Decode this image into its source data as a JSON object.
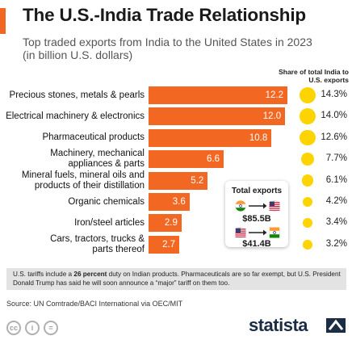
{
  "title": "The U.S.-India Trade Relationship",
  "subtitle": "Top traded exports from India to the United States in 2023 (in billion U.S. dollars)",
  "share_header": "Share of total India to U.S. exports",
  "colors": {
    "bar": "#f26722",
    "accent": "#f26722",
    "dot": "#fdd400",
    "note_bg": "#e3e3e3",
    "brand": "#1b2d45"
  },
  "chart_data": {
    "type": "bar",
    "orientation": "horizontal",
    "categories": [
      "Precious stones, metals & pearls",
      "Electrical machinery & electronics",
      "Pharmaceutical products",
      "Machinery, mechanical appliances & parts",
      "Mineral fuels, mineral oils and products of their distillation",
      "Organic chemicals",
      "Iron/steel articles",
      "Cars, tractors, trucks & parts thereof"
    ],
    "category_lines": [
      [
        "Precious stones, metals & pearls"
      ],
      [
        "Electrical machinery & electronics"
      ],
      [
        "Pharmaceutical products"
      ],
      [
        "Machinery, mechanical",
        "appliances & parts"
      ],
      [
        "Mineral fuels, mineral oils and",
        "products of their distillation"
      ],
      [
        "Organic chemicals"
      ],
      [
        "Iron/steel articles"
      ],
      [
        "Cars, tractors, trucks &",
        "parts thereof"
      ]
    ],
    "values": [
      12.2,
      12.0,
      10.8,
      6.6,
      5.2,
      3.6,
      2.9,
      2.7
    ],
    "value_labels": [
      "12.2",
      "12.0",
      "10.8",
      "6.6",
      "5.2",
      "3.6",
      "2.9",
      "2.7"
    ],
    "share_values": [
      14.3,
      14.0,
      12.6,
      7.7,
      6.1,
      4.2,
      3.4,
      3.2
    ],
    "share_labels": [
      "14.3%",
      "14.0%",
      "12.6%",
      "7.7%",
      "6.1%",
      "4.2%",
      "3.4%",
      "3.2%"
    ],
    "xlim": [
      0,
      12.2
    ],
    "grid": false,
    "legend": "none"
  },
  "totals": {
    "title": "Total exports",
    "india_to_us": {
      "from_icon": "india-flag-icon",
      "to_icon": "us-flag-icon",
      "value": "$85.5B"
    },
    "us_to_india": {
      "from_icon": "us-flag-icon",
      "to_icon": "india-flag-icon",
      "value": "$41.4B"
    }
  },
  "note": {
    "before": "U.S. tariffs include a ",
    "bold": "26 percent",
    "after": " duty on Indian products. Pharmaceuticals are so far exempt, but U.S. President Donald Trump has said he will soon announce a “major” tariff on them too."
  },
  "source": "Source: UN Comtrade/BACI International via OEC/MIT",
  "license_icons": [
    "creative-commons-icon",
    "attribution-icon",
    "no-derivatives-icon"
  ],
  "logo": "statista"
}
